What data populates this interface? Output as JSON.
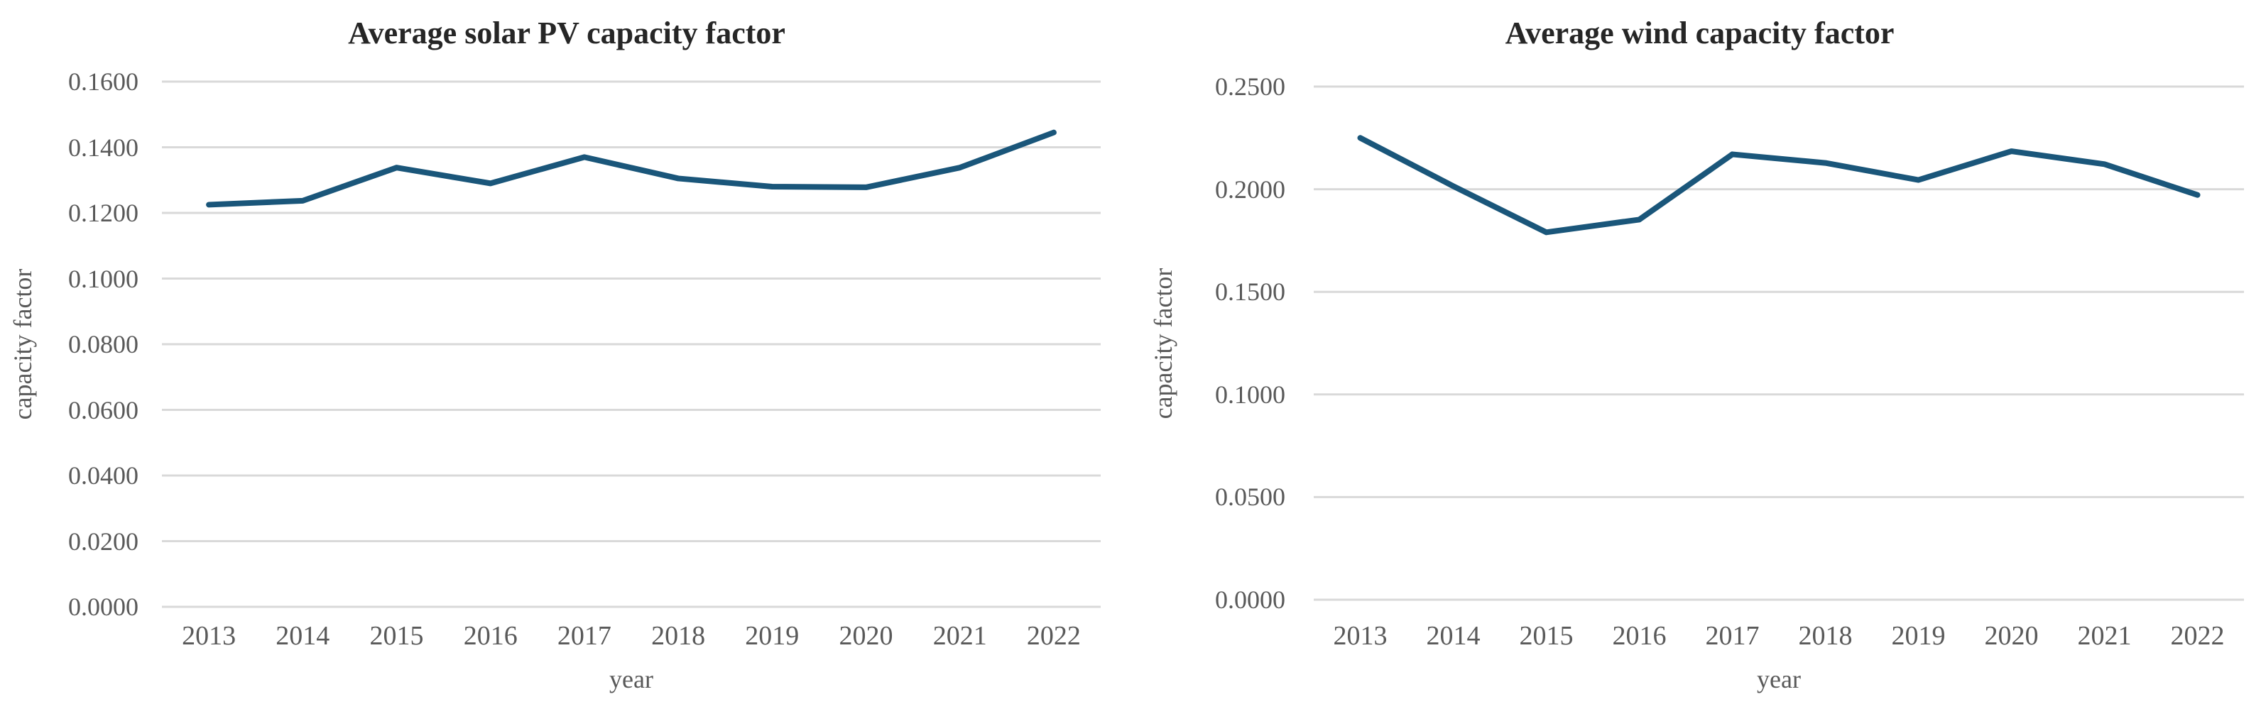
{
  "page": {
    "background": "#ffffff"
  },
  "styles": {
    "line_color": "#1a567a",
    "grid_color": "#d9d9d9",
    "tick_color": "#595959",
    "title_color": "#262626"
  },
  "chart_data": [
    {
      "type": "line",
      "title": "Average solar PV capacity factor",
      "xlabel": "year",
      "ylabel": "capacity factor",
      "categories": [
        "2013",
        "2014",
        "2015",
        "2016",
        "2017",
        "2018",
        "2019",
        "2020",
        "2021",
        "2022"
      ],
      "values": [
        0.1225,
        0.1237,
        0.1338,
        0.129,
        0.137,
        0.1305,
        0.128,
        0.1278,
        0.1338,
        0.1445
      ],
      "ylim": [
        0,
        0.16
      ],
      "ytick_labels": [
        "0.0000",
        "0.0200",
        "0.0400",
        "0.0600",
        "0.0800",
        "0.1000",
        "0.1200",
        "0.1400",
        "0.1600"
      ],
      "grid": "horizontal",
      "legend": "none"
    },
    {
      "type": "line",
      "title": "Average wind capacity factor",
      "xlabel": "year",
      "ylabel": "capacity factor",
      "categories": [
        "2013",
        "2014",
        "2015",
        "2016",
        "2017",
        "2018",
        "2019",
        "2020",
        "2021",
        "2022"
      ],
      "values": [
        0.225,
        0.2015,
        0.179,
        0.1852,
        0.217,
        0.2128,
        0.2045,
        0.2185,
        0.2122,
        0.1972
      ],
      "ylim": [
        0,
        0.25
      ],
      "ytick_labels": [
        "0.0000",
        "0.0500",
        "0.1000",
        "0.1500",
        "0.2000",
        "0.2500"
      ],
      "grid": "horizontal",
      "legend": "none"
    }
  ]
}
